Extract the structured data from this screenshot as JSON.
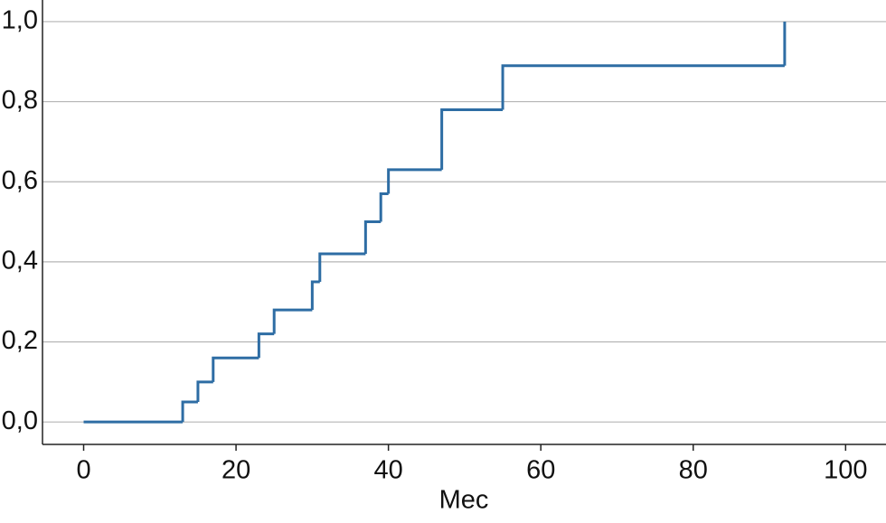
{
  "chart_data": {
    "type": "step",
    "x_label": "Mec",
    "x": [
      0,
      13,
      15,
      17,
      23,
      25,
      30,
      31,
      37,
      39,
      40,
      47,
      55,
      92
    ],
    "values": [
      0,
      0.05,
      0.1,
      0.16,
      0.22,
      0.28,
      0.35,
      0.42,
      0.5,
      0.57,
      0.63,
      0.78,
      0.89,
      1.0
    ],
    "color": "#2e6da4",
    "xlim": [
      -5.4,
      105.3
    ],
    "ylim": [
      -0.056,
      1.054
    ],
    "xticks": [
      0,
      20,
      40,
      60,
      80,
      100
    ],
    "yticks": [
      {
        "value": 0,
        "label": "0,0"
      },
      {
        "value": 0.2,
        "label": "0,2"
      },
      {
        "value": 0.4,
        "label": "0,4"
      },
      {
        "value": 0.6,
        "label": "0,6"
      },
      {
        "value": 0.8,
        "label": "0,8"
      },
      {
        "value": 1.0,
        "label": "1,0"
      }
    ],
    "grid": true
  }
}
